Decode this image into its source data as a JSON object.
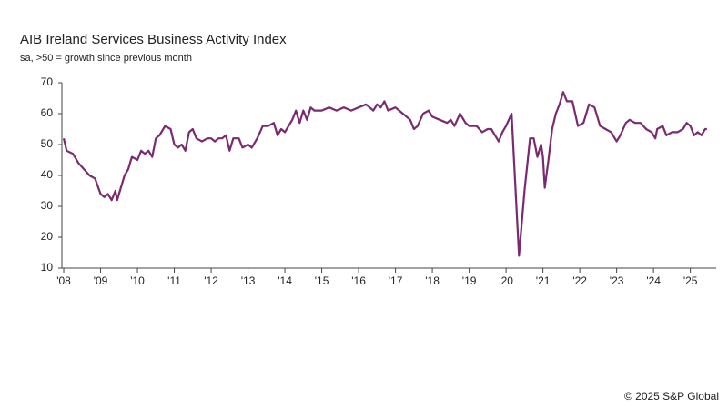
{
  "chart_data": {
    "type": "line",
    "title": "AIB Ireland Services Business Activity Index",
    "subtitle": "sa, >50 = growth since previous month",
    "source": "© 2025 S&P Global",
    "x": [
      2008.0,
      2008.08,
      2008.25,
      2008.4,
      2008.55,
      2008.7,
      2008.85,
      2009.0,
      2009.1,
      2009.2,
      2009.3,
      2009.4,
      2009.45,
      2009.55,
      2009.65,
      2009.75,
      2009.85,
      2010.0,
      2010.1,
      2010.2,
      2010.3,
      2010.4,
      2010.5,
      2010.6,
      2010.75,
      2010.9,
      2011.0,
      2011.1,
      2011.2,
      2011.3,
      2011.4,
      2011.5,
      2011.6,
      2011.75,
      2011.9,
      2012.0,
      2012.1,
      2012.2,
      2012.3,
      2012.4,
      2012.5,
      2012.6,
      2012.75,
      2012.85,
      2013.0,
      2013.1,
      2013.25,
      2013.4,
      2013.55,
      2013.7,
      2013.8,
      2013.9,
      2014.0,
      2014.1,
      2014.2,
      2014.3,
      2014.4,
      2014.5,
      2014.6,
      2014.7,
      2014.8,
      2015.0,
      2015.2,
      2015.4,
      2015.6,
      2015.8,
      2016.0,
      2016.2,
      2016.4,
      2016.5,
      2016.6,
      2016.7,
      2016.8,
      2017.0,
      2017.2,
      2017.4,
      2017.5,
      2017.6,
      2017.75,
      2017.9,
      2018.0,
      2018.2,
      2018.4,
      2018.5,
      2018.6,
      2018.75,
      2018.9,
      2019.0,
      2019.2,
      2019.35,
      2019.5,
      2019.6,
      2019.7,
      2019.8,
      2019.9,
      2020.0,
      2020.15,
      2020.35,
      2020.5,
      2020.65,
      2020.75,
      2020.85,
      2020.95,
      2021.0,
      2021.05,
      2021.15,
      2021.25,
      2021.35,
      2021.45,
      2021.55,
      2021.65,
      2021.8,
      2021.95,
      2022.1,
      2022.25,
      2022.4,
      2022.55,
      2022.7,
      2022.85,
      2023.0,
      2023.1,
      2023.25,
      2023.35,
      2023.5,
      2023.65,
      2023.8,
      2023.95,
      2024.05,
      2024.1,
      2024.25,
      2024.35,
      2024.5,
      2024.65,
      2024.8,
      2024.9,
      2025.0,
      2025.1,
      2025.2,
      2025.3,
      2025.4,
      2025.45
    ],
    "series": [
      {
        "color": "#7a2a6e",
        "values": [
          52,
          48,
          47,
          44,
          42,
          40,
          39,
          34,
          33,
          34,
          32,
          35,
          32,
          36,
          40,
          42,
          46,
          45,
          48,
          47,
          48,
          46,
          52,
          53,
          56,
          55,
          50,
          49,
          50,
          48,
          54,
          55,
          52,
          51,
          52,
          52,
          51,
          52,
          52,
          53,
          48,
          52,
          52,
          49,
          50,
          49,
          52,
          56,
          56,
          57,
          53,
          55,
          54,
          56,
          58,
          61,
          57,
          61,
          58,
          62,
          61,
          61,
          62,
          61,
          62,
          61,
          62,
          63,
          61,
          63,
          62,
          64,
          61,
          62,
          60,
          58,
          55,
          56,
          60,
          61,
          59,
          58,
          57,
          58,
          56,
          60,
          57,
          56,
          56,
          54,
          55,
          55,
          53,
          51,
          54,
          56,
          60,
          14,
          35,
          52,
          52,
          46,
          50,
          46,
          36,
          45,
          55,
          60,
          63,
          67,
          64,
          64,
          56,
          57,
          63,
          62,
          56,
          55,
          54,
          51,
          53,
          57,
          58,
          57,
          57,
          55,
          54,
          52,
          55,
          56,
          53,
          54,
          54,
          55,
          57,
          56,
          53,
          54,
          53,
          55,
          55
        ]
      }
    ],
    "xlim": [
      2007.95,
      2025.7
    ],
    "xticks": [
      {
        "value": 2008,
        "label": "'08"
      },
      {
        "value": 2009,
        "label": "'09"
      },
      {
        "value": 2010,
        "label": "'10"
      },
      {
        "value": 2011,
        "label": "'11"
      },
      {
        "value": 2012,
        "label": "'12"
      },
      {
        "value": 2013,
        "label": "'13"
      },
      {
        "value": 2014,
        "label": "'14"
      },
      {
        "value": 2015,
        "label": "'15"
      },
      {
        "value": 2016,
        "label": "'16"
      },
      {
        "value": 2017,
        "label": "'17"
      },
      {
        "value": 2018,
        "label": "'18"
      },
      {
        "value": 2019,
        "label": "'19"
      },
      {
        "value": 2020,
        "label": "'20"
      },
      {
        "value": 2021,
        "label": "'21"
      },
      {
        "value": 2022,
        "label": "'22"
      },
      {
        "value": 2023,
        "label": "'23"
      },
      {
        "value": 2024,
        "label": "'24"
      },
      {
        "value": 2025,
        "label": "'25"
      }
    ],
    "ylim": [
      10,
      70
    ],
    "yticks": [
      10,
      20,
      30,
      40,
      50,
      60,
      70
    ],
    "grid": false
  }
}
